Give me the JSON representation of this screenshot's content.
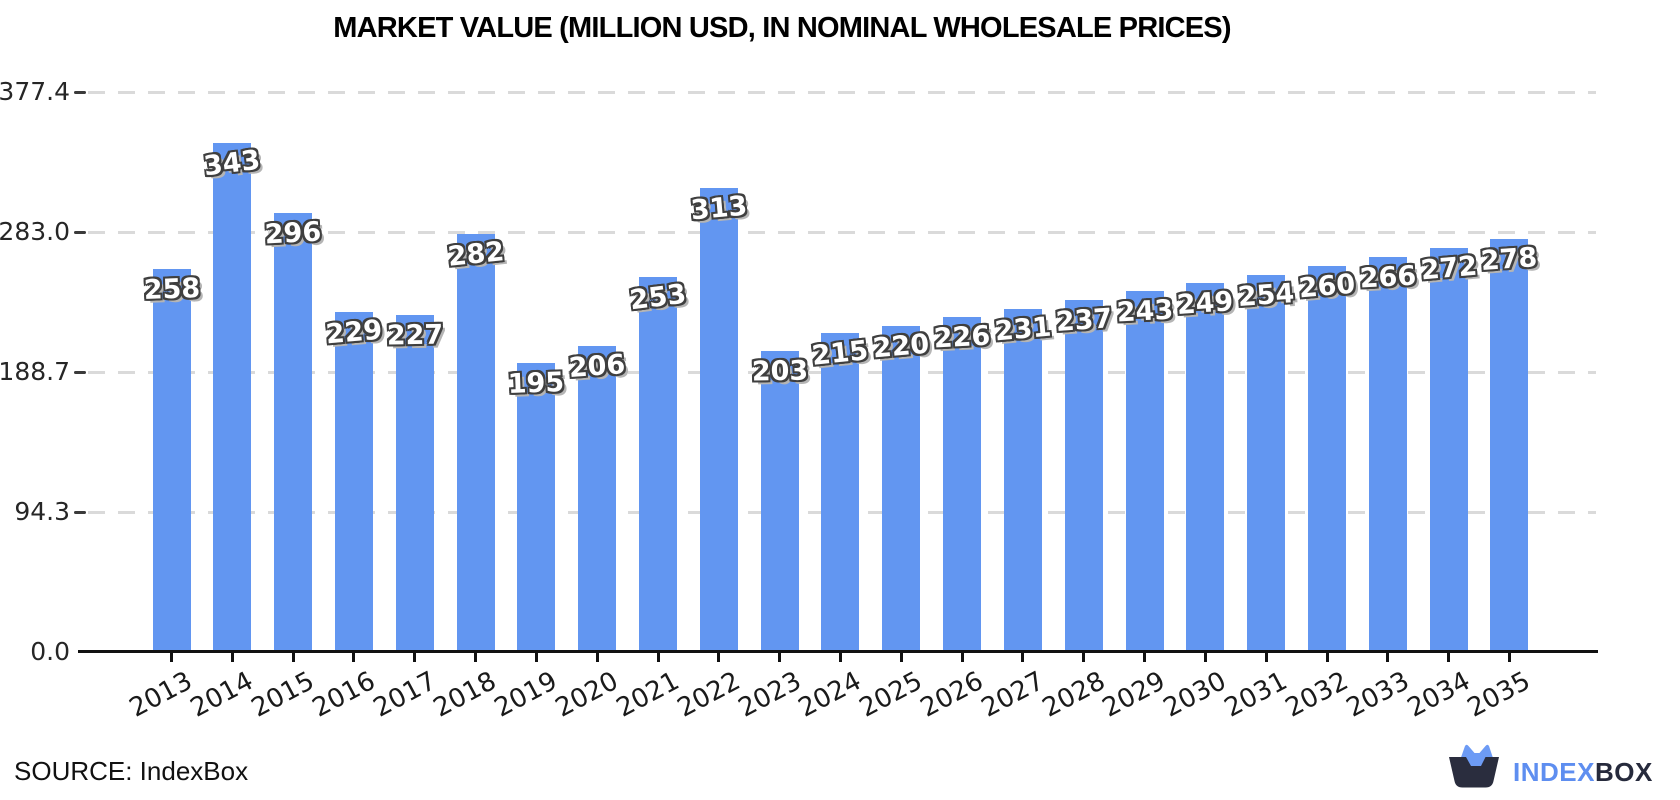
{
  "header": {
    "title": "MARKET VALUE (MILLION USD, IN NOMINAL WHOLESALE PRICES)"
  },
  "chart_data": {
    "type": "bar",
    "title": "MARKET VALUE (MILLION USD, IN NOMINAL WHOLESALE PRICES)",
    "categories": [
      "2013",
      "2014",
      "2015",
      "2016",
      "2017",
      "2018",
      "2019",
      "2020",
      "2021",
      "2022",
      "2023",
      "2024",
      "2025",
      "2026",
      "2027",
      "2028",
      "2029",
      "2030",
      "2031",
      "2032",
      "2033",
      "2034",
      "2035"
    ],
    "values": [
      258,
      343,
      296,
      229,
      227,
      282,
      195,
      206,
      253,
      313,
      203,
      215,
      220,
      226,
      231,
      237,
      243,
      249,
      254,
      260,
      266,
      272,
      278
    ],
    "ylim": [
      0,
      377.4
    ],
    "yticks": [
      0,
      94.3,
      188.7,
      283.0,
      377.4
    ],
    "ytick_labels": [
      "0.0",
      "94.3",
      "188.7",
      "283.0",
      "377.4"
    ],
    "xlabel": "",
    "ylabel": "",
    "legend": "none",
    "grid": "horizontal-dashed",
    "bar_color": "#6296F1",
    "value_label_style": "white-with-dark-outline"
  },
  "footer": {
    "source": "SOURCE: IndexBox",
    "logo": {
      "index": "INDEX",
      "box": "BOX",
      "index_color": "#5E8EF0",
      "box_color": "#262A3C",
      "icon_dark": "#2A2D3E",
      "icon_blue": "#6D9BF5"
    }
  }
}
